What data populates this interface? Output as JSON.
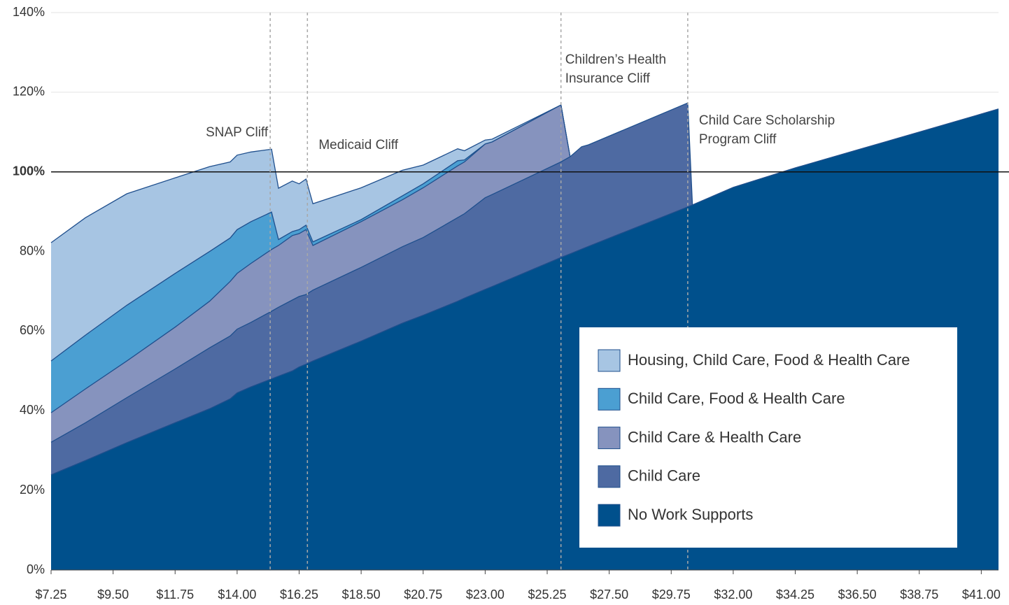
{
  "chart_data": {
    "type": "area",
    "x": [
      7.25,
      8.5,
      10,
      11.75,
      13,
      13.75,
      14,
      14.5,
      15.25,
      15.5,
      16,
      16.25,
      16.5,
      16.75,
      18.5,
      20,
      20.75,
      22,
      22.25,
      23,
      23.25,
      25.75,
      26.08,
      26.5,
      26.75,
      30.35,
      30.52,
      32,
      34.25,
      36.5,
      38.75,
      41.625
    ],
    "series": [
      {
        "name": "Housing, Child Care, Food & Health Care",
        "color": "#a7c5e3",
        "values": [
          82.2,
          88.5,
          94.5,
          98.5,
          101.3,
          102.5,
          104.2,
          105,
          105.7,
          95.9,
          97.7,
          97,
          98.2,
          92,
          96,
          100.4,
          101.7,
          105.8,
          105.3,
          108,
          108.2,
          116.8,
          103.8,
          null,
          null,
          null,
          null,
          null,
          null,
          null,
          null,
          null
        ]
      },
      {
        "name": "Child Care, Food & Health Care",
        "color": "#4b9fd2",
        "values": [
          52.5,
          59,
          66.5,
          74.5,
          80,
          83.4,
          85.5,
          87.5,
          89.9,
          83,
          85,
          85.5,
          86.6,
          82.4,
          88,
          94,
          97,
          102.8,
          103,
          107,
          107.5,
          116.8,
          103.8,
          null,
          null,
          null,
          null,
          null,
          null,
          null,
          null,
          null
        ]
      },
      {
        "name": "Child Care & Health Care",
        "color": "#8693be",
        "values": [
          39.5,
          45.5,
          52.5,
          61,
          67.5,
          72.5,
          74.5,
          77,
          80.5,
          81.5,
          84,
          84.5,
          85.5,
          81.5,
          87.5,
          93,
          96,
          101.5,
          102.5,
          107,
          107.5,
          116.8,
          103.8,
          null,
          null,
          null,
          null,
          null,
          null,
          null,
          null,
          null
        ]
      },
      {
        "name": "Child Care",
        "color": "#4e6aa2",
        "values": [
          32.1,
          37,
          43.3,
          50.5,
          55.8,
          58.8,
          60.5,
          62.2,
          65,
          66,
          67.8,
          68.7,
          69.2,
          70.3,
          76,
          81.2,
          83.5,
          88.5,
          89.5,
          93.5,
          94.3,
          102.5,
          103.8,
          106.3,
          106.8,
          117.3,
          91.7,
          null,
          null,
          null,
          null,
          null
        ]
      },
      {
        "name": "No Work Supports",
        "color": "#00508c",
        "values": [
          23.9,
          27.5,
          32,
          37,
          40.5,
          43,
          44.5,
          46,
          48,
          48.7,
          50,
          51,
          51.7,
          52.5,
          57.5,
          62,
          64,
          67.5,
          68.3,
          70.5,
          71.2,
          78.5,
          79.4,
          80.6,
          81.3,
          91.2,
          91.7,
          96.1,
          101,
          105.5,
          110,
          115.8
        ]
      }
    ],
    "xlim": [
      7.25,
      41.625
    ],
    "ylim": [
      0,
      140
    ],
    "xticks": [
      {
        "value": 7.25,
        "label": "$7.25"
      },
      {
        "value": 9.5,
        "label": "$9.50"
      },
      {
        "value": 11.75,
        "label": "$11.75"
      },
      {
        "value": 14,
        "label": "$14.00"
      },
      {
        "value": 16.25,
        "label": "$16.25"
      },
      {
        "value": 18.5,
        "label": "$18.50"
      },
      {
        "value": 20.75,
        "label": "$20.75"
      },
      {
        "value": 23,
        "label": "$23.00"
      },
      {
        "value": 25.25,
        "label": "$25.25"
      },
      {
        "value": 27.5,
        "label": "$27.50"
      },
      {
        "value": 29.75,
        "label": "$29.75"
      },
      {
        "value": 32,
        "label": "$32.00"
      },
      {
        "value": 34.25,
        "label": "$34.25"
      },
      {
        "value": 36.5,
        "label": "$36.50"
      },
      {
        "value": 38.75,
        "label": "$38.75"
      },
      {
        "value": 41,
        "label": "$41.00"
      }
    ],
    "yticks": [
      {
        "value": 0,
        "label": "0%"
      },
      {
        "value": 20,
        "label": "20%"
      },
      {
        "value": 40,
        "label": "40%"
      },
      {
        "value": 60,
        "label": "60%"
      },
      {
        "value": 80,
        "label": "80%"
      },
      {
        "value": 100,
        "label": "100%"
      },
      {
        "value": 120,
        "label": "120%"
      },
      {
        "value": 140,
        "label": "140%"
      }
    ],
    "reference_line": 100,
    "grid": true,
    "legend": "lower right",
    "annotations": [
      {
        "x": 15.2,
        "lines": [
          "SNAP Cliff"
        ]
      },
      {
        "x": 16.55,
        "lines": [
          "Medicaid Cliff"
        ]
      },
      {
        "x": 25.75,
        "lines": [
          "Children’s Health",
          "Insurance Cliff"
        ]
      },
      {
        "x": 30.35,
        "lines": [
          "Child Care Scholarship",
          "Program Cliff"
        ]
      }
    ]
  }
}
